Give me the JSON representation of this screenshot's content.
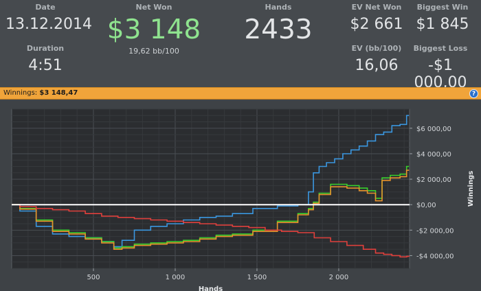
{
  "stats": {
    "date": {
      "label": "Date",
      "value": "13.12.2014"
    },
    "duration": {
      "label": "Duration",
      "value": "4:51"
    },
    "net_won": {
      "label": "Net Won",
      "value": "$3 148",
      "sub": "19,62 bb/100"
    },
    "hands": {
      "label": "Hands",
      "value": "2433"
    },
    "ev_net_won": {
      "label": "EV Net Won",
      "value": "$2 661"
    },
    "biggest_win": {
      "label": "Biggest Win",
      "value": "$1 845"
    },
    "ev_bb100": {
      "label": "EV (bb/100)",
      "value": "16,06"
    },
    "biggest_loss": {
      "label": "Biggest Loss",
      "value": "-$1 000,00"
    }
  },
  "bar": {
    "label": "Winnings:",
    "value": "$3 148,47",
    "help": "?"
  },
  "colors": {
    "blue": "#3b97e0",
    "green": "#39d12c",
    "orange": "#e8922c",
    "red": "#e0403c",
    "zero": "#ffffff"
  },
  "chart_data": {
    "type": "line",
    "xlabel": "Hands",
    "ylabel": "Winnings",
    "xlim": [
      0,
      2433
    ],
    "ylim": [
      -5000,
      7500
    ],
    "x_ticks": [
      500,
      1000,
      1500,
      2000
    ],
    "x_tick_labels": [
      "500",
      "1 000",
      "1 500",
      "2 000"
    ],
    "y_ticks": [
      6000,
      4000,
      2000,
      0,
      -2000,
      -4000
    ],
    "y_tick_labels": [
      "$6 000,00",
      "$4 000,00",
      "$2 000,00",
      "$0,00",
      "-$2 000,00",
      "-$4 000,00"
    ],
    "grid": true,
    "series": [
      {
        "color": "#3b97e0",
        "points": [
          [
            0,
            0
          ],
          [
            100,
            -500
          ],
          [
            200,
            -1700
          ],
          [
            300,
            -2300
          ],
          [
            400,
            -2500
          ],
          [
            500,
            -2600
          ],
          [
            600,
            -2900
          ],
          [
            650,
            -3300
          ],
          [
            700,
            -2800
          ],
          [
            800,
            -2000
          ],
          [
            900,
            -1700
          ],
          [
            1000,
            -1500
          ],
          [
            1100,
            -1200
          ],
          [
            1200,
            -1000
          ],
          [
            1300,
            -900
          ],
          [
            1400,
            -700
          ],
          [
            1550,
            -300
          ],
          [
            1700,
            -100
          ],
          [
            1800,
            0
          ],
          [
            1830,
            1000
          ],
          [
            1860,
            2500
          ],
          [
            1900,
            3000
          ],
          [
            1950,
            3300
          ],
          [
            2000,
            3600
          ],
          [
            2050,
            4000
          ],
          [
            2100,
            4300
          ],
          [
            2150,
            4600
          ],
          [
            2200,
            5000
          ],
          [
            2250,
            5500
          ],
          [
            2300,
            5700
          ],
          [
            2350,
            6200
          ],
          [
            2400,
            6300
          ],
          [
            2430,
            7000
          ]
        ]
      },
      {
        "color": "#39d12c",
        "points": [
          [
            0,
            0
          ],
          [
            100,
            -300
          ],
          [
            200,
            -1200
          ],
          [
            300,
            -2000
          ],
          [
            400,
            -2200
          ],
          [
            500,
            -2600
          ],
          [
            600,
            -2900
          ],
          [
            650,
            -3400
          ],
          [
            700,
            -3300
          ],
          [
            800,
            -3100
          ],
          [
            900,
            -3000
          ],
          [
            1000,
            -2900
          ],
          [
            1100,
            -2800
          ],
          [
            1200,
            -2600
          ],
          [
            1300,
            -2400
          ],
          [
            1400,
            -2300
          ],
          [
            1550,
            -2000
          ],
          [
            1700,
            -1300
          ],
          [
            1800,
            -700
          ],
          [
            1830,
            -300
          ],
          [
            1860,
            200
          ],
          [
            1900,
            900
          ],
          [
            2000,
            1600
          ],
          [
            2100,
            1500
          ],
          [
            2150,
            1300
          ],
          [
            2200,
            1100
          ],
          [
            2250,
            500
          ],
          [
            2280,
            2100
          ],
          [
            2350,
            2300
          ],
          [
            2400,
            2400
          ],
          [
            2430,
            3000
          ]
        ]
      },
      {
        "color": "#e8922c",
        "points": [
          [
            0,
            0
          ],
          [
            100,
            -350
          ],
          [
            200,
            -1300
          ],
          [
            300,
            -2100
          ],
          [
            400,
            -2300
          ],
          [
            500,
            -2700
          ],
          [
            600,
            -3000
          ],
          [
            650,
            -3500
          ],
          [
            700,
            -3400
          ],
          [
            800,
            -3200
          ],
          [
            900,
            -3100
          ],
          [
            1000,
            -3000
          ],
          [
            1100,
            -2900
          ],
          [
            1200,
            -2700
          ],
          [
            1300,
            -2500
          ],
          [
            1400,
            -2400
          ],
          [
            1550,
            -2100
          ],
          [
            1700,
            -1400
          ],
          [
            1800,
            -800
          ],
          [
            1830,
            -400
          ],
          [
            1860,
            100
          ],
          [
            1900,
            800
          ],
          [
            2000,
            1400
          ],
          [
            2100,
            1300
          ],
          [
            2150,
            1100
          ],
          [
            2200,
            900
          ],
          [
            2250,
            300
          ],
          [
            2280,
            1900
          ],
          [
            2350,
            2100
          ],
          [
            2400,
            2200
          ],
          [
            2430,
            2700
          ]
        ]
      },
      {
        "color": "#e0403c",
        "points": [
          [
            0,
            0
          ],
          [
            100,
            -150
          ],
          [
            200,
            -300
          ],
          [
            300,
            -400
          ],
          [
            400,
            -500
          ],
          [
            500,
            -700
          ],
          [
            600,
            -900
          ],
          [
            700,
            -1000
          ],
          [
            800,
            -1100
          ],
          [
            900,
            -1200
          ],
          [
            1000,
            -1300
          ],
          [
            1100,
            -1400
          ],
          [
            1200,
            -1500
          ],
          [
            1300,
            -1600
          ],
          [
            1400,
            -1700
          ],
          [
            1500,
            -1800
          ],
          [
            1600,
            -2000
          ],
          [
            1700,
            -2100
          ],
          [
            1800,
            -2200
          ],
          [
            1900,
            -2600
          ],
          [
            2000,
            -2900
          ],
          [
            2100,
            -3200
          ],
          [
            2200,
            -3500
          ],
          [
            2250,
            -3800
          ],
          [
            2300,
            -3900
          ],
          [
            2350,
            -4000
          ],
          [
            2400,
            -4100
          ],
          [
            2433,
            -4050
          ]
        ]
      }
    ]
  }
}
